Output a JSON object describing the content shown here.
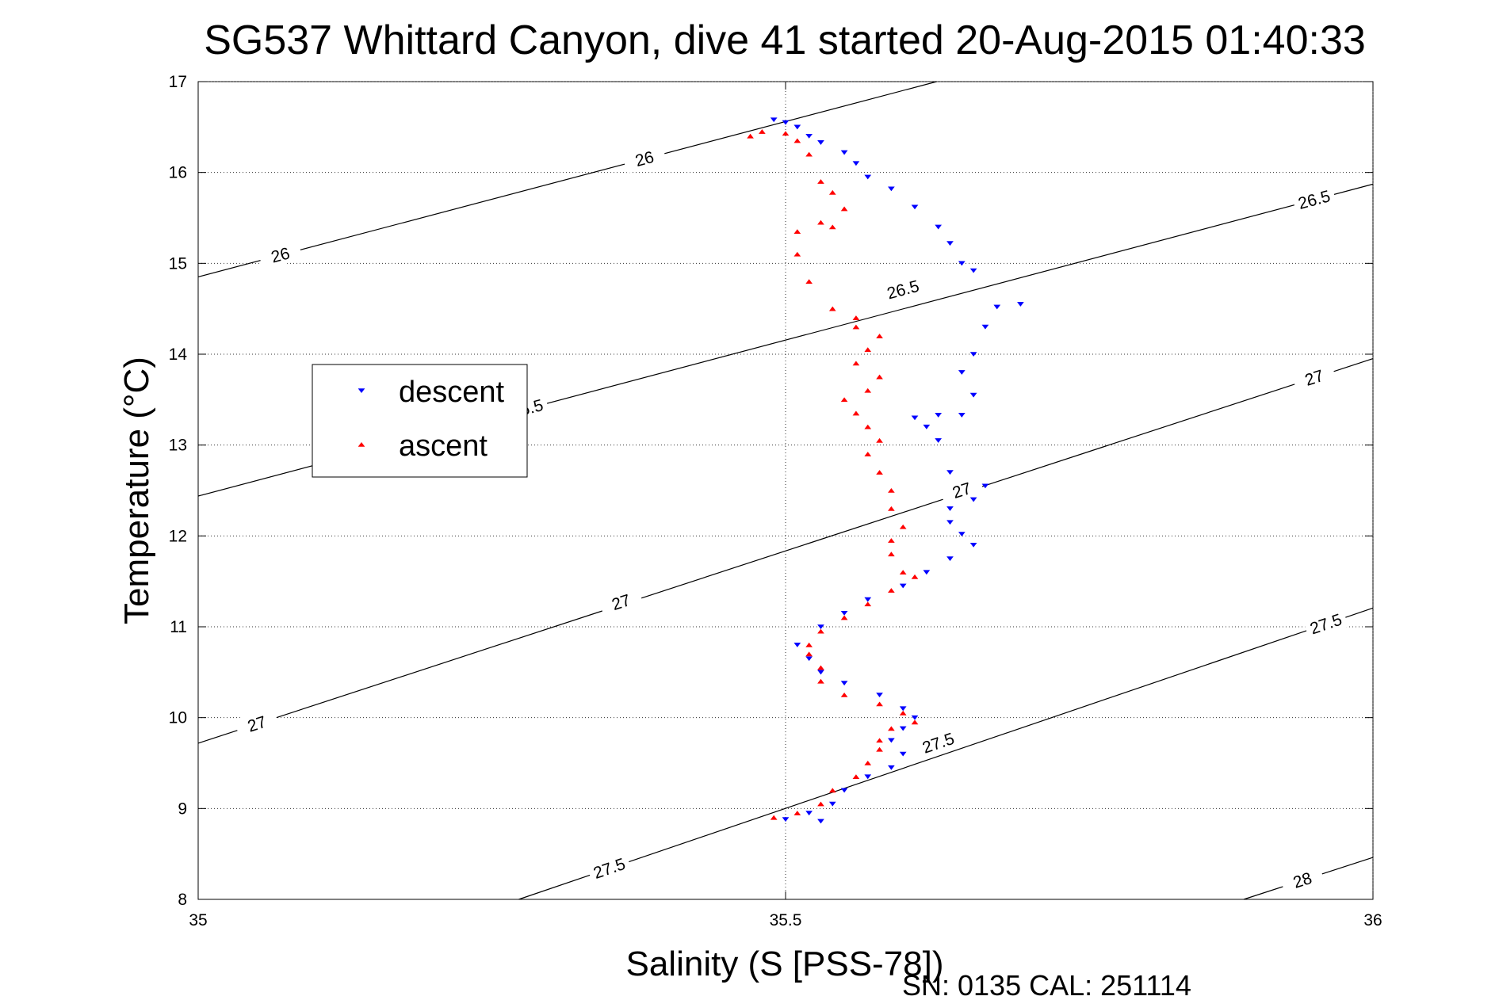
{
  "chart_data": {
    "type": "scatter",
    "title": "SG537 Whittard Canyon, dive 41 started 20-Aug-2015 01:40:33",
    "xlabel": "Salinity (S [PSS-78])",
    "ylabel": "Temperature (°C)",
    "xlim": [
      35,
      36
    ],
    "ylim": [
      8,
      17
    ],
    "xticks": [
      35,
      35.5,
      36
    ],
    "xtick_labels": [
      "35",
      "35.5",
      "36"
    ],
    "yticks": [
      8,
      9,
      10,
      11,
      12,
      13,
      14,
      15,
      16,
      17
    ],
    "ytick_labels": [
      "8",
      "9",
      "10",
      "11",
      "12",
      "13",
      "14",
      "15",
      "16",
      "17"
    ],
    "grid": true,
    "legend_position": "upper-left",
    "footer": "SN: 0135  CAL: 251114",
    "colors": {
      "descent": "#0000ff",
      "ascent": "#ff0000",
      "contour": "#000000"
    },
    "density_contours": [
      {
        "value": 26,
        "label": "26",
        "labels_at": [
          [
            35.07,
            15.09
          ],
          [
            35.38,
            16.15
          ]
        ]
      },
      {
        "value": 26.5,
        "label": "26.5",
        "labels_at": [
          [
            35.28,
            13.4
          ],
          [
            35.6,
            14.71
          ],
          [
            35.95,
            15.7
          ]
        ]
      },
      {
        "value": 27,
        "label": "27",
        "labels_at": [
          [
            35.05,
            9.93
          ],
          [
            35.36,
            11.27
          ],
          [
            35.65,
            12.5
          ],
          [
            35.95,
            13.74
          ]
        ]
      },
      {
        "value": 27.5,
        "label": "27.5",
        "labels_at": [
          [
            35.35,
            8.34
          ],
          [
            35.63,
            9.72
          ],
          [
            35.96,
            11.03
          ]
        ]
      },
      {
        "value": 28,
        "label": "28",
        "labels_at": [
          [
            35.94,
            8.21
          ]
        ]
      }
    ],
    "series": [
      {
        "name": "descent",
        "marker": "triangle-down",
        "points": [
          [
            35.49,
            16.58
          ],
          [
            35.5,
            16.55
          ],
          [
            35.51,
            16.5
          ],
          [
            35.52,
            16.4
          ],
          [
            35.53,
            16.33
          ],
          [
            35.55,
            16.22
          ],
          [
            35.56,
            16.1
          ],
          [
            35.57,
            15.95
          ],
          [
            35.59,
            15.82
          ],
          [
            35.61,
            15.62
          ],
          [
            35.63,
            15.4
          ],
          [
            35.64,
            15.22
          ],
          [
            35.65,
            15.0
          ],
          [
            35.66,
            14.92
          ],
          [
            35.68,
            14.52
          ],
          [
            35.7,
            14.55
          ],
          [
            35.67,
            14.3
          ],
          [
            35.66,
            14.0
          ],
          [
            35.65,
            13.8
          ],
          [
            35.66,
            13.55
          ],
          [
            35.65,
            13.33
          ],
          [
            35.63,
            13.33
          ],
          [
            35.61,
            13.3
          ],
          [
            35.62,
            13.2
          ],
          [
            35.63,
            13.05
          ],
          [
            35.64,
            12.7
          ],
          [
            35.67,
            12.55
          ],
          [
            35.66,
            12.4
          ],
          [
            35.64,
            12.3
          ],
          [
            35.64,
            12.15
          ],
          [
            35.65,
            12.02
          ],
          [
            35.66,
            11.9
          ],
          [
            35.64,
            11.75
          ],
          [
            35.62,
            11.6
          ],
          [
            35.6,
            11.45
          ],
          [
            35.57,
            11.3
          ],
          [
            35.55,
            11.15
          ],
          [
            35.53,
            11.0
          ],
          [
            35.51,
            10.8
          ],
          [
            35.52,
            10.65
          ],
          [
            35.53,
            10.5
          ],
          [
            35.55,
            10.38
          ],
          [
            35.58,
            10.25
          ],
          [
            35.6,
            10.1
          ],
          [
            35.61,
            10.0
          ],
          [
            35.6,
            9.88
          ],
          [
            35.59,
            9.75
          ],
          [
            35.6,
            9.6
          ],
          [
            35.59,
            9.45
          ],
          [
            35.57,
            9.35
          ],
          [
            35.55,
            9.2
          ],
          [
            35.54,
            9.05
          ],
          [
            35.52,
            8.95
          ],
          [
            35.5,
            8.88
          ],
          [
            35.53,
            8.86
          ]
        ]
      },
      {
        "name": "ascent",
        "marker": "triangle-up",
        "points": [
          [
            35.47,
            16.4
          ],
          [
            35.48,
            16.45
          ],
          [
            35.5,
            16.43
          ],
          [
            35.51,
            16.35
          ],
          [
            35.52,
            16.2
          ],
          [
            35.53,
            15.9
          ],
          [
            35.54,
            15.78
          ],
          [
            35.55,
            15.6
          ],
          [
            35.53,
            15.45
          ],
          [
            35.51,
            15.35
          ],
          [
            35.54,
            15.4
          ],
          [
            35.51,
            15.1
          ],
          [
            35.52,
            14.8
          ],
          [
            35.54,
            14.5
          ],
          [
            35.56,
            14.4
          ],
          [
            35.56,
            14.3
          ],
          [
            35.58,
            14.2
          ],
          [
            35.57,
            14.05
          ],
          [
            35.56,
            13.9
          ],
          [
            35.58,
            13.75
          ],
          [
            35.57,
            13.6
          ],
          [
            35.55,
            13.5
          ],
          [
            35.56,
            13.35
          ],
          [
            35.57,
            13.2
          ],
          [
            35.58,
            13.05
          ],
          [
            35.57,
            12.9
          ],
          [
            35.58,
            12.7
          ],
          [
            35.59,
            12.5
          ],
          [
            35.59,
            12.3
          ],
          [
            35.6,
            12.1
          ],
          [
            35.59,
            11.95
          ],
          [
            35.59,
            11.8
          ],
          [
            35.6,
            11.6
          ],
          [
            35.61,
            11.55
          ],
          [
            35.59,
            11.4
          ],
          [
            35.57,
            11.25
          ],
          [
            35.55,
            11.1
          ],
          [
            35.53,
            10.95
          ],
          [
            35.52,
            10.8
          ],
          [
            35.52,
            10.7
          ],
          [
            35.53,
            10.55
          ],
          [
            35.53,
            10.4
          ],
          [
            35.55,
            10.25
          ],
          [
            35.58,
            10.15
          ],
          [
            35.6,
            10.05
          ],
          [
            35.61,
            9.95
          ],
          [
            35.59,
            9.88
          ],
          [
            35.58,
            9.75
          ],
          [
            35.58,
            9.65
          ],
          [
            35.57,
            9.5
          ],
          [
            35.56,
            9.35
          ],
          [
            35.54,
            9.2
          ],
          [
            35.53,
            9.05
          ],
          [
            35.51,
            8.95
          ],
          [
            35.49,
            8.9
          ]
        ]
      }
    ]
  }
}
